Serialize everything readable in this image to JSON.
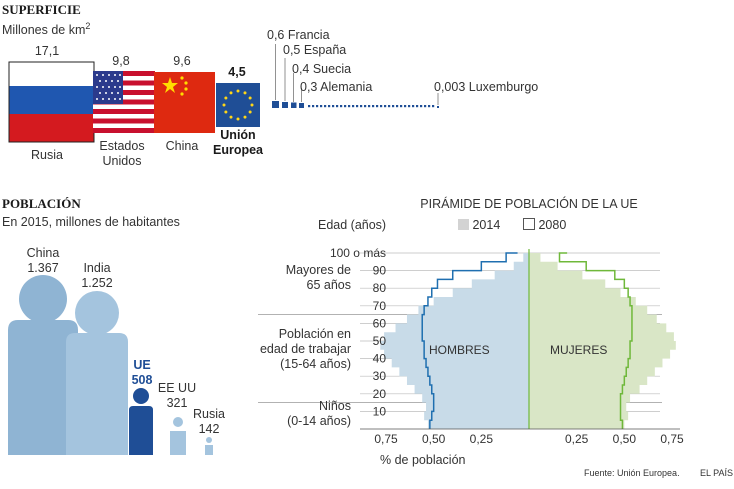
{
  "superficie": {
    "title": "SUPERFICIE",
    "unit_prefix": "Millones de km",
    "unit_sup": "2",
    "big": [
      {
        "name": "Rusia",
        "value": "17,1"
      },
      {
        "name_line1": "Estados",
        "name_line2": "Unidos",
        "value": "9,8"
      },
      {
        "name": "China",
        "value": "9,6"
      },
      {
        "name_line1": "Unión",
        "name_line2": "Europea",
        "value": "4,5"
      }
    ],
    "small": [
      {
        "name": "0,6 Francia"
      },
      {
        "name": "0,5 España"
      },
      {
        "name": "0,4 Suecia"
      },
      {
        "name": "0,3 Alemania"
      },
      {
        "name": "0,003 Luxemburgo"
      }
    ]
  },
  "poblacion": {
    "title": "POBLACIÓN",
    "subtitle": "En 2015, millones de habitantes",
    "items": [
      {
        "name": "China",
        "value": "1.367"
      },
      {
        "name": "India",
        "value": "1.252"
      },
      {
        "name": "UE",
        "value": "508"
      },
      {
        "name": "EE UU",
        "value": "321"
      },
      {
        "name": "Rusia",
        "value": "142"
      }
    ]
  },
  "chart_data": {
    "type": "area",
    "title": "PIRÁMIDE DE POBLACIÓN DE LA UE",
    "ylabel": "Edad (años)",
    "xlabel": "% de población",
    "legend": [
      "2014",
      "2080"
    ],
    "colors": {
      "hombres_2014": "#c8dbe8",
      "mujeres_2014": "#d9e6c6",
      "hombres_2080": "#1f6fb0",
      "mujeres_2080": "#6fb83a"
    },
    "y_ticks": [
      "100 o más",
      "90",
      "80",
      "70",
      "60",
      "50",
      "40",
      "30",
      "20",
      "10"
    ],
    "x_ticks_left": [
      "0,75",
      "0,50",
      "0,25"
    ],
    "x_ticks_right": [
      "0,25",
      "0,50",
      "0,75"
    ],
    "xlim": [
      0,
      0.75
    ],
    "ylim": [
      0,
      100
    ],
    "inner_labels": {
      "hombres": "HOMBRES",
      "mujeres": "MUJERES"
    },
    "groups": [
      {
        "line1": "Mayores de",
        "line2": "65 años"
      },
      {
        "line1": "Población en",
        "line2": "edad de trabajar",
        "line3": "(15-64 años)"
      },
      {
        "line1": "Niños",
        "line2": "(0-14 años)"
      }
    ],
    "ages": [
      0,
      5,
      10,
      15,
      20,
      25,
      30,
      35,
      40,
      45,
      50,
      55,
      60,
      65,
      70,
      75,
      80,
      85,
      90,
      95,
      100
    ],
    "hombres_2014": [
      0.53,
      0.55,
      0.54,
      0.56,
      0.6,
      0.64,
      0.68,
      0.72,
      0.76,
      0.78,
      0.76,
      0.7,
      0.64,
      0.58,
      0.5,
      0.4,
      0.3,
      0.18,
      0.08,
      0.03,
      0.02
    ],
    "mujeres_2014": [
      0.5,
      0.52,
      0.51,
      0.53,
      0.58,
      0.62,
      0.66,
      0.7,
      0.74,
      0.77,
      0.76,
      0.72,
      0.67,
      0.62,
      0.56,
      0.48,
      0.4,
      0.28,
      0.15,
      0.06,
      0.03
    ],
    "hombres_2080": [
      0.52,
      0.51,
      0.5,
      0.5,
      0.51,
      0.52,
      0.53,
      0.54,
      0.55,
      0.55,
      0.56,
      0.56,
      0.56,
      0.55,
      0.53,
      0.51,
      0.48,
      0.4,
      0.25,
      0.12,
      0.06
    ],
    "mujeres_2080": [
      0.49,
      0.48,
      0.48,
      0.48,
      0.49,
      0.5,
      0.51,
      0.52,
      0.53,
      0.53,
      0.54,
      0.54,
      0.54,
      0.54,
      0.53,
      0.52,
      0.5,
      0.45,
      0.3,
      0.16,
      0.2
    ]
  },
  "footer": {
    "source": "Fuente: Unión Europea.",
    "brand": "EL PAÍS"
  }
}
